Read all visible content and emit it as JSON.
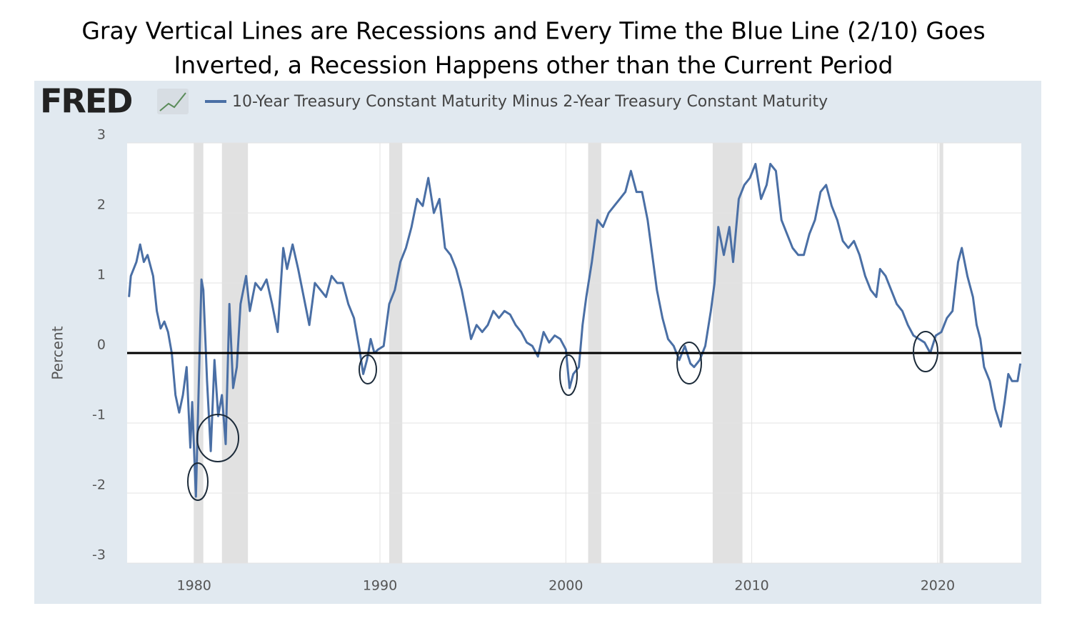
{
  "chart_data": {
    "type": "line",
    "title": [
      "Gray Vertical Lines are Recessions and Every Time the Blue Line (2/10) Goes",
      "Inverted, a Recession Happens other than the Current Period"
    ],
    "logo": "FRED",
    "ylabel": "Percent",
    "xlim": [
      1976.4,
      2024.5
    ],
    "xticks": [
      1980,
      1990,
      2000,
      2010,
      2020
    ],
    "ylim": [
      -3,
      3
    ],
    "yticks": [
      -3,
      -2,
      -1,
      0,
      1,
      2,
      3
    ],
    "grid": true,
    "reference_line": 0,
    "recessions": [
      [
        1980.0,
        1980.5
      ],
      [
        1981.5,
        1982.9
      ],
      [
        1990.5,
        1991.2
      ],
      [
        2001.2,
        2001.9
      ],
      [
        2007.9,
        2009.5
      ],
      [
        2020.1,
        2020.3
      ]
    ],
    "recession_color": "#e1e1e1",
    "x": [
      1976.5,
      1976.6,
      1976.9,
      1977.1,
      1977.3,
      1977.5,
      1977.8,
      1978.0,
      1978.2,
      1978.4,
      1978.6,
      1978.8,
      1979.0,
      1979.2,
      1979.4,
      1979.6,
      1979.8,
      1979.9,
      1980.1,
      1980.25,
      1980.4,
      1980.5,
      1980.7,
      1980.9,
      1981.1,
      1981.3,
      1981.5,
      1981.7,
      1981.9,
      1982.1,
      1982.3,
      1982.5,
      1982.8,
      1983.0,
      1983.3,
      1983.6,
      1983.9,
      1984.2,
      1984.5,
      1984.8,
      1985.0,
      1985.3,
      1985.6,
      1985.9,
      1986.2,
      1986.5,
      1986.8,
      1987.1,
      1987.4,
      1987.7,
      1988.0,
      1988.3,
      1988.6,
      1988.9,
      1989.1,
      1989.3,
      1989.5,
      1989.7,
      1989.9,
      1990.2,
      1990.5,
      1990.8,
      1991.1,
      1991.4,
      1991.7,
      1992.0,
      1992.3,
      1992.6,
      1992.9,
      1993.2,
      1993.5,
      1993.8,
      1994.1,
      1994.4,
      1994.7,
      1994.9,
      1995.2,
      1995.5,
      1995.8,
      1996.1,
      1996.4,
      1996.7,
      1997.0,
      1997.3,
      1997.6,
      1997.9,
      1998.2,
      1998.5,
      1998.8,
      1999.1,
      1999.4,
      1999.7,
      2000.0,
      2000.2,
      2000.4,
      2000.7,
      2000.9,
      2001.1,
      2001.4,
      2001.7,
      2002.0,
      2002.3,
      2002.6,
      2002.9,
      2003.2,
      2003.5,
      2003.8,
      2004.1,
      2004.4,
      2004.7,
      2004.9,
      2005.2,
      2005.5,
      2005.8,
      2006.1,
      2006.4,
      2006.7,
      2006.9,
      2007.2,
      2007.5,
      2007.8,
      2008.0,
      2008.2,
      2008.5,
      2008.8,
      2009.0,
      2009.3,
      2009.6,
      2009.9,
      2010.2,
      2010.5,
      2010.8,
      2011.0,
      2011.3,
      2011.6,
      2011.9,
      2012.2,
      2012.5,
      2012.8,
      2013.1,
      2013.4,
      2013.7,
      2014.0,
      2014.3,
      2014.6,
      2014.9,
      2015.2,
      2015.5,
      2015.8,
      2016.1,
      2016.4,
      2016.7,
      2016.9,
      2017.2,
      2017.5,
      2017.8,
      2018.1,
      2018.4,
      2018.7,
      2019.0,
      2019.3,
      2019.6,
      2019.9,
      2020.2,
      2020.5,
      2020.8,
      2021.1,
      2021.3,
      2021.6,
      2021.9,
      2022.1,
      2022.3,
      2022.5,
      2022.8,
      2023.1,
      2023.4,
      2023.6,
      2023.8,
      2024.0,
      2024.3,
      2024.45
    ],
    "series": [
      {
        "name": "10-Year Treasury Constant Maturity Minus 2-Year Treasury Constant Maturity",
        "color": "#4a6fa5",
        "values": [
          0.8,
          1.1,
          1.3,
          1.55,
          1.3,
          1.4,
          1.1,
          0.6,
          0.35,
          0.45,
          0.3,
          0.0,
          -0.6,
          -0.85,
          -0.6,
          -0.2,
          -1.35,
          -0.7,
          -2.05,
          -0.5,
          1.05,
          0.9,
          -0.4,
          -1.4,
          -0.1,
          -0.9,
          -0.6,
          -1.3,
          0.7,
          -0.5,
          -0.2,
          0.7,
          1.1,
          0.6,
          1.0,
          0.9,
          1.05,
          0.7,
          0.3,
          1.5,
          1.2,
          1.55,
          1.2,
          0.8,
          0.4,
          1.0,
          0.9,
          0.8,
          1.1,
          1.0,
          1.0,
          0.7,
          0.5,
          0.05,
          -0.3,
          -0.1,
          0.2,
          0.0,
          0.05,
          0.1,
          0.7,
          0.9,
          1.3,
          1.5,
          1.8,
          2.2,
          2.1,
          2.5,
          2.0,
          2.2,
          1.5,
          1.4,
          1.2,
          0.9,
          0.5,
          0.2,
          0.4,
          0.3,
          0.4,
          0.6,
          0.5,
          0.6,
          0.55,
          0.4,
          0.3,
          0.15,
          0.1,
          -0.05,
          0.3,
          0.15,
          0.25,
          0.2,
          0.05,
          -0.5,
          -0.3,
          -0.2,
          0.4,
          0.8,
          1.3,
          1.9,
          1.8,
          2.0,
          2.1,
          2.2,
          2.3,
          2.6,
          2.3,
          2.3,
          1.9,
          1.3,
          0.9,
          0.5,
          0.2,
          0.1,
          -0.1,
          0.1,
          -0.15,
          -0.2,
          -0.1,
          0.1,
          0.6,
          1.0,
          1.8,
          1.4,
          1.8,
          1.3,
          2.2,
          2.4,
          2.5,
          2.7,
          2.2,
          2.4,
          2.7,
          2.6,
          1.9,
          1.7,
          1.5,
          1.4,
          1.4,
          1.7,
          1.9,
          2.3,
          2.4,
          2.1,
          1.9,
          1.6,
          1.5,
          1.6,
          1.4,
          1.1,
          0.9,
          0.8,
          1.2,
          1.1,
          0.9,
          0.7,
          0.6,
          0.4,
          0.25,
          0.2,
          0.15,
          0.0,
          0.25,
          0.3,
          0.5,
          0.6,
          1.3,
          1.5,
          1.1,
          0.8,
          0.4,
          0.2,
          -0.2,
          -0.4,
          -0.8,
          -1.05,
          -0.7,
          -0.3,
          -0.4,
          -0.4,
          -0.15
        ]
      }
    ]
  }
}
